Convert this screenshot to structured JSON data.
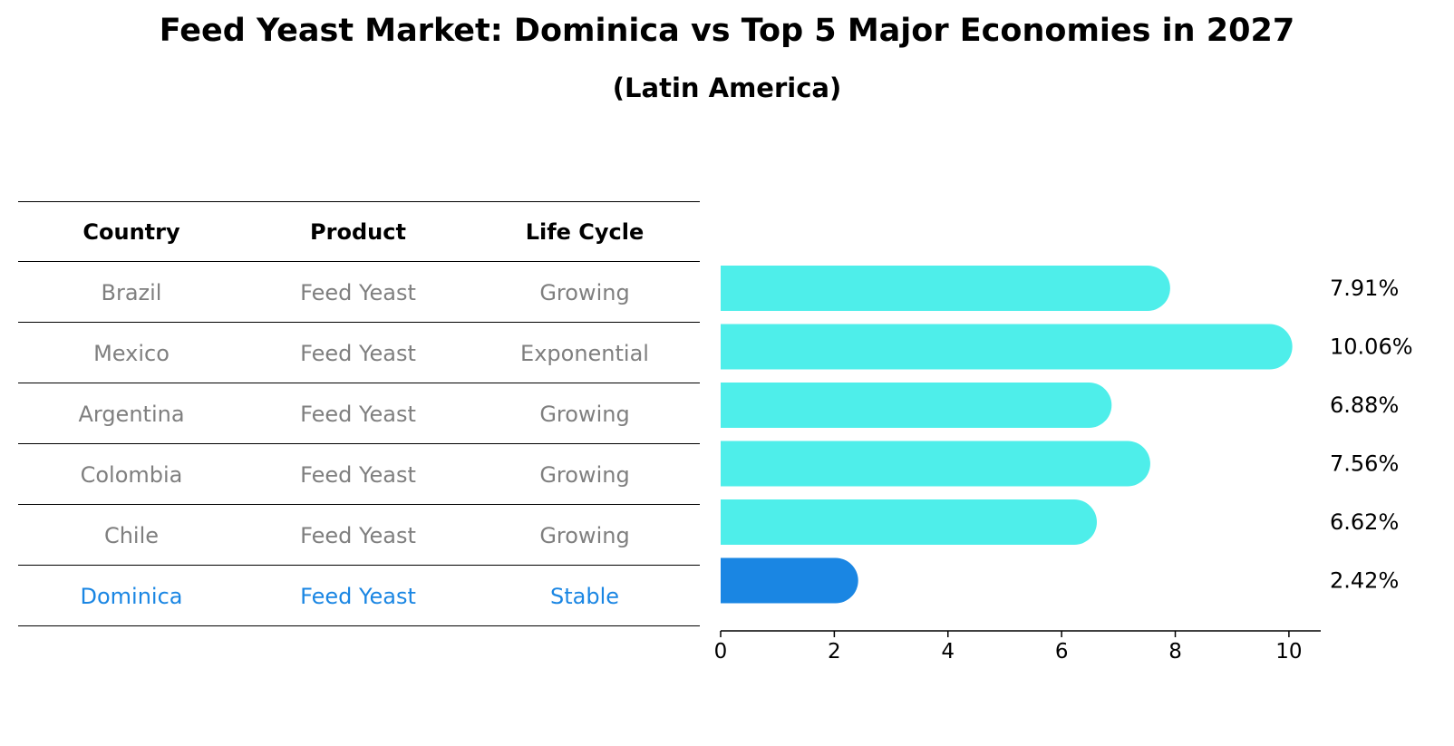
{
  "header": {
    "title": "Feed Yeast Market: Dominica vs Top 5 Major Economies in 2027",
    "subtitle": "(Latin America)"
  },
  "table": {
    "columns": [
      "Country",
      "Product",
      "Life Cycle"
    ],
    "rows": [
      {
        "country": "Brazil",
        "product": "Feed Yeast",
        "life_cycle": "Growing"
      },
      {
        "country": "Mexico",
        "product": "Feed Yeast",
        "life_cycle": "Exponential"
      },
      {
        "country": "Argentina",
        "product": "Feed Yeast",
        "life_cycle": "Growing"
      },
      {
        "country": "Colombia",
        "product": "Feed Yeast",
        "life_cycle": "Growing"
      },
      {
        "country": "Chile",
        "product": "Feed Yeast",
        "life_cycle": "Growing"
      },
      {
        "country": "Dominica",
        "product": "Feed Yeast",
        "life_cycle": "Stable"
      }
    ]
  },
  "colors": {
    "bar": "#4eeeea",
    "highlight": "#1a86e3",
    "table_text": "#7f7f7f"
  },
  "chart_data": {
    "type": "bar",
    "orientation": "horizontal",
    "title": "Feed Yeast Market: Dominica vs Top 5 Major Economies in 2027",
    "subtitle": "(Latin America)",
    "categories": [
      "Brazil",
      "Mexico",
      "Argentina",
      "Colombia",
      "Chile",
      "Dominica"
    ],
    "values": [
      7.91,
      10.06,
      6.88,
      7.56,
      6.62,
      2.42
    ],
    "value_labels": [
      "7.91%",
      "10.06%",
      "6.88%",
      "7.56%",
      "6.62%",
      "2.42%"
    ],
    "highlight_category": "Dominica",
    "xlim": [
      0,
      10.56
    ],
    "xticks": [
      0,
      2,
      4,
      6,
      8,
      10
    ],
    "xlabel": "",
    "ylabel": "",
    "grid": false,
    "legend": "none"
  }
}
